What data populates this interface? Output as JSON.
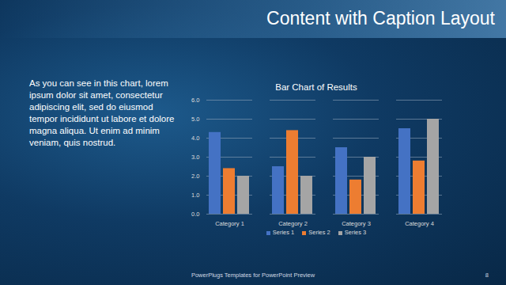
{
  "slide": {
    "title": "Content with Caption Layout",
    "caption": "As you can see in this chart, lorem ipsum dolor sit amet, consectetur adipiscing elit, sed do eiusmod tempor incididunt ut labore et dolore magna aliqua. Ut enim ad minim veniam, quis nostrud.",
    "footer": "PowerPlugs Templates for PowerPoint Preview",
    "page": 8
  },
  "chart_data": {
    "type": "bar",
    "title": "Bar Chart of Results",
    "categories": [
      "Category 1",
      "Category 2",
      "Category 3",
      "Category 4"
    ],
    "series": [
      {
        "name": "Series 1",
        "color": "#4472c4",
        "values": [
          4.3,
          2.5,
          3.5,
          4.5
        ]
      },
      {
        "name": "Series 2",
        "color": "#ed7d31",
        "values": [
          2.4,
          4.4,
          1.8,
          2.8
        ]
      },
      {
        "name": "Series 3",
        "color": "#a5a5a5",
        "values": [
          2,
          2,
          3,
          5
        ]
      }
    ],
    "ylim": [
      0,
      6
    ],
    "yticks": [
      0,
      1,
      2,
      3,
      4,
      5,
      6
    ],
    "grid": true,
    "legend": "bottom"
  }
}
